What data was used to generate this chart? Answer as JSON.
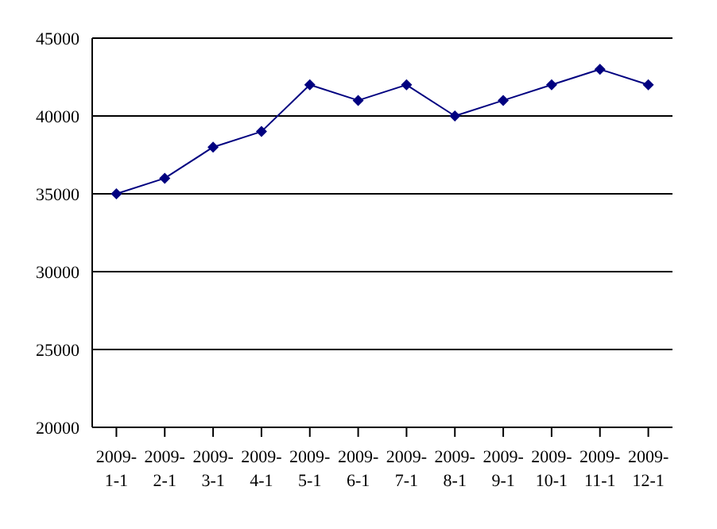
{
  "chart_data": {
    "type": "line",
    "categories": [
      "2009-1-1",
      "2009-2-1",
      "2009-3-1",
      "2009-4-1",
      "2009-5-1",
      "2009-6-1",
      "2009-7-1",
      "2009-8-1",
      "2009-9-1",
      "2009-10-1",
      "2009-11-1",
      "2009-12-1"
    ],
    "series": [
      {
        "color": "#000080",
        "values": [
          35000,
          36000,
          38000,
          39000,
          42000,
          41000,
          42000,
          40000,
          41000,
          42000,
          43000,
          42000
        ]
      }
    ],
    "ylim": [
      20000,
      45000
    ],
    "yticks": [
      20000,
      25000,
      30000,
      35000,
      40000,
      45000
    ],
    "grid": "y",
    "legend": false,
    "marker": "diamond",
    "line_style": "solid"
  }
}
